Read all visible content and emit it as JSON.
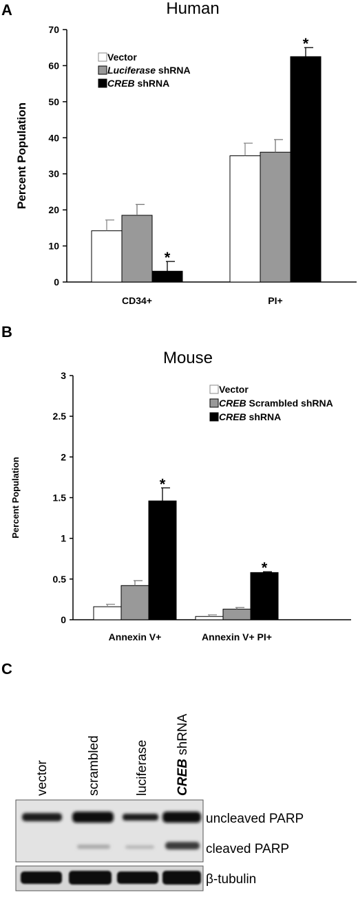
{
  "panels": {
    "a": "A",
    "b": "B",
    "c": "C"
  },
  "chart_data": [
    {
      "type": "bar",
      "title": "Human",
      "ylabel": "Percent Population",
      "xlabel": "",
      "ylim": [
        0,
        70
      ],
      "yticks": [
        "0",
        "10",
        "20",
        "30",
        "40",
        "50",
        "60",
        "70"
      ],
      "categories": [
        "CD34+",
        "PI+"
      ],
      "legend_position": "top-left",
      "series": [
        {
          "name": "Vector",
          "name_parts": [
            {
              "text": "Vector",
              "italic": false
            }
          ],
          "color": "#ffffff",
          "values": [
            14.2,
            35.0
          ],
          "errors": [
            3.0,
            3.5
          ]
        },
        {
          "name": "Luciferase shRNA",
          "name_parts": [
            {
              "text": "Luciferase",
              "italic": true
            },
            {
              "text": " shRNA",
              "italic": false
            }
          ],
          "color": "#999999",
          "values": [
            18.5,
            36.0
          ],
          "errors": [
            3.0,
            3.5
          ]
        },
        {
          "name": "CREB shRNA",
          "name_parts": [
            {
              "text": "CREB",
              "italic": true
            },
            {
              "text": " shRNA",
              "italic": false
            }
          ],
          "color": "#000000",
          "values": [
            3.0,
            62.5
          ],
          "errors": [
            2.7,
            2.5
          ]
        }
      ],
      "significance": [
        "*",
        "*"
      ]
    },
    {
      "type": "bar",
      "title": "Mouse",
      "ylabel": "Percent Population",
      "xlabel": "",
      "ylim": [
        0,
        3
      ],
      "yticks": [
        "0",
        "0.5",
        "1",
        "1.5",
        "2",
        "2.5",
        "3"
      ],
      "categories": [
        "Annexin V+",
        "Annexin V+ PI+"
      ],
      "legend_position": "top-right",
      "series": [
        {
          "name": "Vector",
          "name_parts": [
            {
              "text": "Vector",
              "italic": false
            }
          ],
          "color": "#ffffff",
          "values": [
            0.16,
            0.04
          ],
          "errors": [
            0.03,
            0.02
          ]
        },
        {
          "name": "CREB Scrambled shRNA",
          "name_parts": [
            {
              "text": "CREB",
              "italic": true
            },
            {
              "text": " Scrambled shRNA",
              "italic": false
            }
          ],
          "color": "#999999",
          "values": [
            0.42,
            0.13
          ],
          "errors": [
            0.06,
            0.02
          ]
        },
        {
          "name": "CREB shRNA",
          "name_parts": [
            {
              "text": "CREB",
              "italic": true
            },
            {
              "text": " shRNA",
              "italic": false
            }
          ],
          "color": "#000000",
          "values": [
            1.46,
            0.58
          ],
          "errors": [
            0.16,
            0.01
          ]
        }
      ],
      "significance": [
        "*",
        "*"
      ]
    }
  ],
  "blot": {
    "lanes": [
      {
        "parts": [
          {
            "text": "vector",
            "italic": false
          }
        ]
      },
      {
        "parts": [
          {
            "text": "scrambled",
            "italic": false
          }
        ]
      },
      {
        "parts": [
          {
            "text": "luciferase",
            "italic": false
          }
        ]
      },
      {
        "parts": [
          {
            "text": "CREB",
            "italic": true,
            "bold": true
          },
          {
            "text": " shRNA",
            "italic": false
          }
        ]
      }
    ],
    "bands": [
      "uncleaved PARP",
      "cleaved PARP",
      "β-tubulin"
    ]
  }
}
